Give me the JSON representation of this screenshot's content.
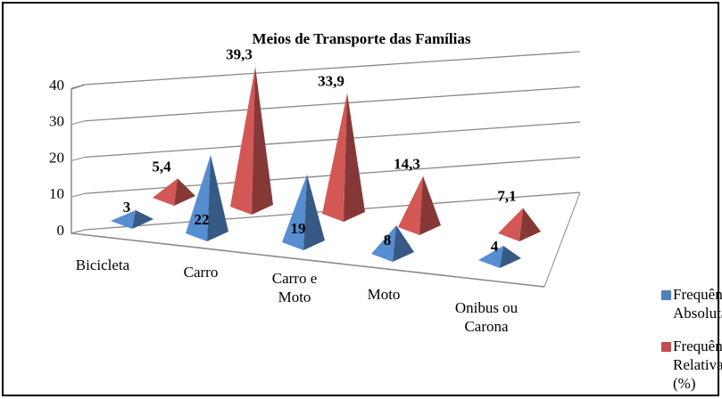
{
  "chart_data": {
    "type": "pyramid3d",
    "title": "Meios de Transporte  das Famílias",
    "categories": [
      "Bicicleta",
      "Carro",
      "Carro e Moto",
      "Moto",
      "Onibus ou Carona"
    ],
    "series": [
      {
        "name": "Frequência Absoluta",
        "color": "#4f81bd",
        "values": [
          3,
          22,
          19,
          8,
          4
        ],
        "value_labels": [
          "3",
          "22",
          "19",
          "8",
          "4"
        ]
      },
      {
        "name": "Frequência Relativa (%)",
        "color": "#c0504d",
        "values": [
          5.4,
          39.3,
          33.9,
          14.3,
          7.1
        ],
        "value_labels": [
          "5,4",
          "39,3",
          "33,9",
          "14,3",
          "7,1"
        ]
      }
    ],
    "ylim": [
      0,
      40
    ],
    "yticks": [
      0,
      10,
      20,
      30,
      40
    ],
    "grid": true,
    "legend": "right"
  }
}
